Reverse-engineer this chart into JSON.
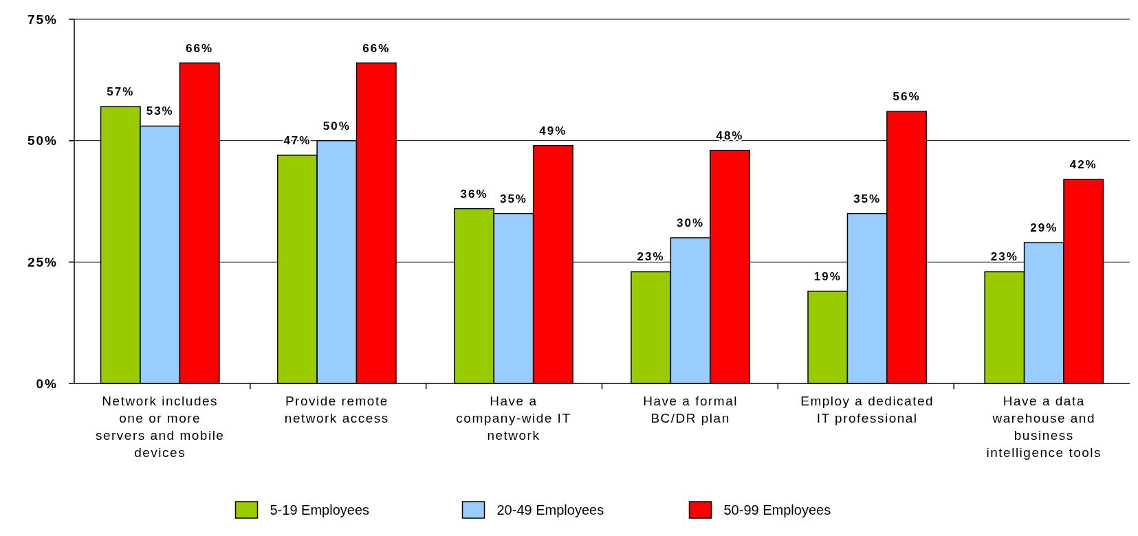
{
  "chart_data": {
    "type": "bar",
    "categories": [
      "Network includes one or more servers and mobile devices",
      "Provide remote network access",
      "Have a company-wide IT network",
      "Have a formal BC/DR plan",
      "Employ a dedicated IT professional",
      "Have a data warehouse and business intelligence tools"
    ],
    "series": [
      {
        "name": "5-19 Employees",
        "color": "#99cc00",
        "values": [
          57,
          47,
          36,
          23,
          19,
          23
        ],
        "value_labels": [
          "57%",
          "47%",
          "36%",
          "23%",
          "19%",
          "23%"
        ]
      },
      {
        "name": "20-49 Employees",
        "color": "#99ccff",
        "values": [
          53,
          50,
          35,
          30,
          35,
          29
        ],
        "value_labels": [
          "53%",
          "50%",
          "35%",
          "30%",
          "35%",
          "29%"
        ]
      },
      {
        "name": "50-99 Employees",
        "color": "#ff0000",
        "values": [
          66,
          66,
          49,
          48,
          56,
          42
        ],
        "value_labels": [
          "66%",
          "66%",
          "49%",
          "48%",
          "56%",
          "42%"
        ]
      }
    ],
    "ylim": [
      0,
      75
    ],
    "yticks": [
      {
        "value": 0,
        "label": "0%"
      },
      {
        "value": 25,
        "label": "25%"
      },
      {
        "value": 50,
        "label": "50%"
      },
      {
        "value": 75,
        "label": "75%"
      }
    ],
    "grid": "y",
    "legend": "bottom"
  }
}
